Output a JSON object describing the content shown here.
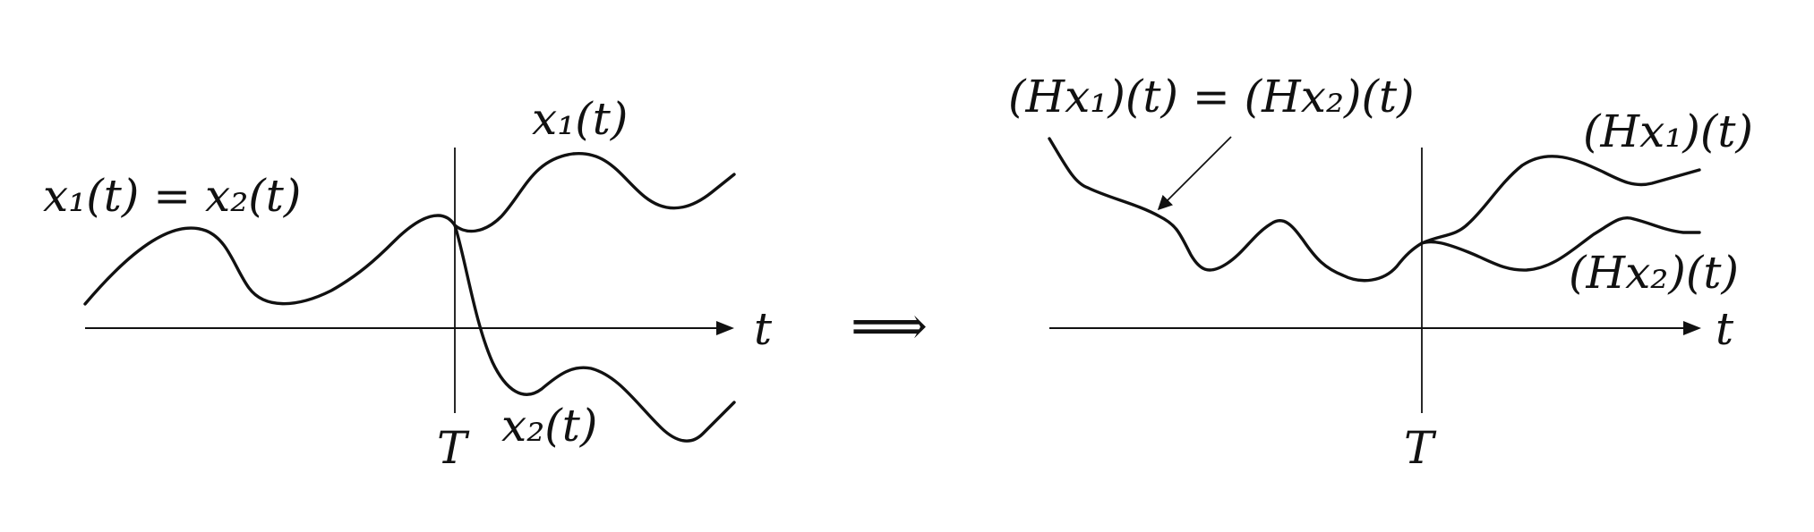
{
  "left_panel": {
    "label_x1_equals_x2": "x₁(t) = x₂(t)",
    "label_x1": "x₁(t)",
    "label_x2": "x₂(t)",
    "time_axis_label": "t",
    "cutoff_label": "T"
  },
  "implication_symbol": "⟹",
  "right_panel": {
    "label_equal_outputs": "(Hx₁)(t) = (Hx₂)(t)",
    "label_Hx1": "(Hx₁)(t)",
    "label_Hx2": "(Hx₂)(t)",
    "time_axis_label": "t",
    "cutoff_label": "T"
  }
}
